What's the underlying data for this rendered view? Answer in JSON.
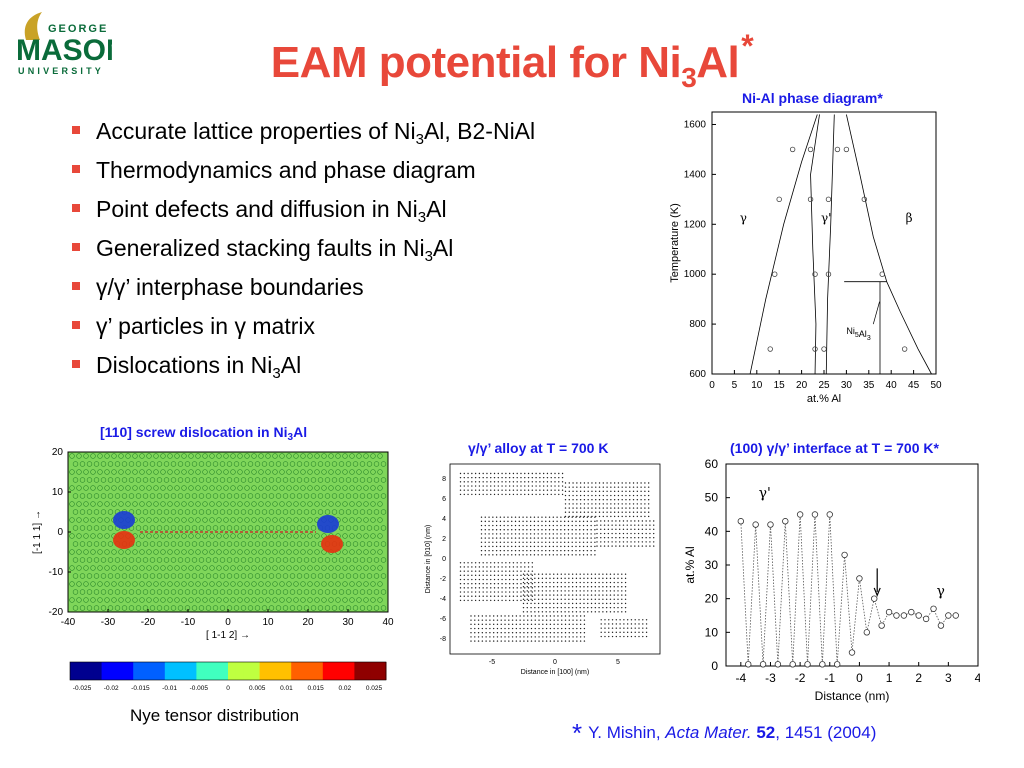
{
  "logo": {
    "line1": "GEORGE",
    "line2": "MASON",
    "line3": "UNIVERSITY"
  },
  "title": {
    "main": "EAM potential for Ni",
    "sub": "3",
    "tail": "Al",
    "star": "*"
  },
  "bullets": [
    {
      "a": "Accurate lattice properties of Ni",
      "sub": "3",
      "b": "Al, B2-NiAl"
    },
    {
      "a": "Thermodynamics and phase diagram",
      "sub": "",
      "b": ""
    },
    {
      "a": "Point defects and diffusion in Ni",
      "sub": "3",
      "b": "Al"
    },
    {
      "a": "Generalized stacking faults in Ni",
      "sub": "3",
      "b": "Al"
    },
    {
      "a": "γ/γ’ interphase boundaries",
      "sub": "",
      "b": ""
    },
    {
      "a": "γ’ particles in γ matrix",
      "sub": "",
      "b": ""
    },
    {
      "a": "Dislocations in Ni",
      "sub": "3",
      "b": "Al"
    }
  ],
  "phase": {
    "title": "Ni-Al phase diagram*",
    "xlabel": "at.% Al",
    "ylabel": "Temperature (K)",
    "xticks": [
      "0",
      "5",
      "10",
      "15",
      "20",
      "25",
      "30",
      "35",
      "40",
      "45",
      "50"
    ],
    "yticks": [
      "600",
      "800",
      "1000",
      "1200",
      "1400",
      "1600"
    ],
    "labels": {
      "gamma": "γ",
      "gammap": "γ'",
      "beta": "β",
      "ni5al3": "Ni",
      "ni5al3_sub": "5",
      "ni5al3_tail": "Al",
      "ni5al3_sub2": "3"
    }
  },
  "screw": {
    "title_a": "[110] screw dislocation in Ni",
    "title_sub": "3",
    "title_b": "Al",
    "xlabel": "[ 1-1 2] →",
    "ylabel": "[-1 1 1] →",
    "xticks": [
      "-40",
      "-30",
      "-20",
      "-10",
      "0",
      "10",
      "20",
      "30",
      "40"
    ],
    "yticks": [
      "20",
      "10",
      "0",
      "-10",
      "-20"
    ],
    "colorbar": [
      "-0.025",
      "-0.02",
      "-0.015",
      "-0.01",
      "-0.005",
      "0",
      "0.005",
      "0.01",
      "0.015",
      "0.02",
      "0.025"
    ],
    "caption": "Nye tensor distribution"
  },
  "alloy": {
    "title": "γ/γ’ alloy at T = 700 K",
    "xlabel": "Distance in [100] (nm)",
    "ylabel": "Distance in [010] (nm)",
    "xticks": [
      "-5",
      "0",
      "5"
    ],
    "yticks": [
      "8",
      "6",
      "4",
      "2",
      "0",
      "-2",
      "-4",
      "-6",
      "-8"
    ]
  },
  "interface": {
    "title": "(100) γ/γ’ interface at T = 700 K*",
    "xlabel": "Distance (nm)",
    "ylabel": "at.% Al",
    "xticks": [
      "-4",
      "-3",
      "-2",
      "-1",
      "0",
      "1",
      "2",
      "3",
      "4"
    ],
    "yticks": [
      "0",
      "10",
      "20",
      "30",
      "40",
      "50",
      "60"
    ],
    "gp_label": "γ'",
    "g_label": "γ"
  },
  "chart_data": [
    {
      "type": "line",
      "title": "(100) γ/γ’ interface at T = 700 K*",
      "xlabel": "Distance (nm)",
      "ylabel": "at.% Al",
      "xlim": [
        -4.5,
        4
      ],
      "ylim": [
        0,
        60
      ],
      "x": [
        -4,
        -3.75,
        -3.5,
        -3.25,
        -3,
        -2.75,
        -2.5,
        -2.25,
        -2,
        -1.75,
        -1.5,
        -1.25,
        -1,
        -0.75,
        -0.5,
        -0.25,
        0,
        0.25,
        0.5,
        0.75,
        1,
        1.25,
        1.5,
        1.75,
        2,
        2.25,
        2.5,
        2.75,
        3,
        3.25
      ],
      "y": [
        43,
        0.5,
        42,
        0.5,
        42,
        0.5,
        43,
        0.5,
        45,
        0.5,
        45,
        0.5,
        45,
        0.5,
        33,
        4,
        26,
        10,
        20,
        12,
        16,
        15,
        15,
        16,
        15,
        14,
        17,
        12,
        15,
        15
      ]
    }
  ],
  "ref": {
    "star": "*",
    "authors": "Y. Mishin, ",
    "journal": "Acta Mater.",
    "vol": "52",
    "rest": ", 1451 (2004)"
  }
}
